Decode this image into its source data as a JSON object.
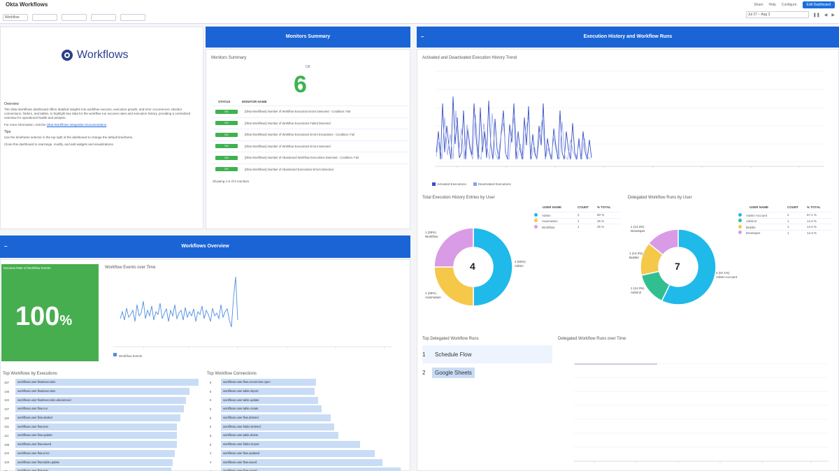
{
  "topbar": {
    "title": "Okta Workflows",
    "filters": [
      {
        "label": "",
        "value": "Workflow"
      },
      {
        "label": "",
        "value": ""
      },
      {
        "label": "",
        "value": ""
      },
      {
        "label": "",
        "value": ""
      },
      {
        "label": "",
        "value": ""
      }
    ],
    "actions": [
      "Share",
      "Help",
      "Configure"
    ],
    "primary_action": "Edit Dashboard",
    "time_range": "Jul 27 – Aug 3"
  },
  "workflows_panel": {
    "logo_text": "Workflows",
    "overview_heading": "Overview",
    "overview_text": "The Okta Workflows dashboard offers detailed insights into workflow success, execution growth, and error occurrences. Monitor connections, folders, and tables, to highlight key data for the workflow run success rates and execution history, providing a centralized overview for operational health and analysis.",
    "more_info_prefix": "For more information, visit the",
    "more_info_link": "Okta Workflows Integration Documentation",
    "tips_heading": "Tips",
    "tips": [
      "Use the timeframe selector in the top right of the dashboard to change the default timeframe.",
      "Clone this dashboard to rearrange, modify, and add widgets and visualizations."
    ]
  },
  "monitors_summary": {
    "band_title": "Monitors Summary",
    "panel_title": "Monitors Summary",
    "ok_label": "OK",
    "ok_count": "6",
    "col_status": "STATUS",
    "col_name": "MONITOR NAME",
    "rows": [
      {
        "status": "OK",
        "name": "[Okta Workflows] Number of Workflow Execution Errors Detected - Condition: Fail"
      },
      {
        "status": "OK",
        "name": "[Okta Workflows] Number of Workflow Executions Failed Detected"
      },
      {
        "status": "OK",
        "name": "[Okta Workflows] Number of Workflow Executions Errors Exceptions - Condition: Fail"
      },
      {
        "status": "OK",
        "name": "[Okta Workflows] Number of Workflow Executions Errors Detected"
      },
      {
        "status": "OK",
        "name": "[Okta Workflows] Number of Abandoned Workflow Executions Detected - Condition: Fail"
      },
      {
        "status": "OK",
        "name": "[Okta Workflows] Number of Abandoned Executions Errors Detected"
      }
    ],
    "footer": "Showing 1-6 of 6 monitors"
  },
  "workflows_overview": {
    "band_title": "Workflows Overview",
    "success_title": "Success Rate of Workflow Events",
    "success_value": "100",
    "success_unit": "%",
    "events_chart_title": "Workflow Events over Time",
    "events_legend": "Workflow Events",
    "top_flows_title": "Top Workflows by Executions",
    "top_flows": [
      {
        "n": "167",
        "name": "workflows.user.flowExecution",
        "w": 1.0
      },
      {
        "n": "146",
        "name": "workflows.user.flowExecution",
        "w": 0.95
      },
      {
        "n": "134",
        "name": "workflows.user.flowExecution.abandoned",
        "w": 0.93
      },
      {
        "n": "127",
        "name": "workflows.user.flow.run",
        "w": 0.92
      },
      {
        "n": "118",
        "name": "workflows.user.flow.started",
        "w": 0.9
      },
      {
        "n": "115",
        "name": "workflows.user.flow.test",
        "w": 0.88
      },
      {
        "n": "111",
        "name": "workflows.user.flow.update",
        "w": 0.88
      },
      {
        "n": "108",
        "name": "workflows.user.flow.saved",
        "w": 0.88
      },
      {
        "n": "104",
        "name": "workflows.user.flow.error",
        "w": 0.87
      },
      {
        "n": "103",
        "name": "workflows.user.flow.table.update",
        "w": 0.86
      },
      {
        "n": "99",
        "name": "workflows.user.flow.test",
        "w": 0.85
      }
    ],
    "top_connections_title": "Top Workflow Connections",
    "top_connections": [
      {
        "n": "8",
        "name": "workflows.user.flow.connection.open",
        "w": 0.52
      },
      {
        "n": "6",
        "name": "workflows.user.table.import",
        "w": 0.51
      },
      {
        "n": "6",
        "name": "workflows.user.table.update",
        "w": 0.53
      },
      {
        "n": "5",
        "name": "workflows.user.table.create",
        "w": 0.55
      },
      {
        "n": "5",
        "name": "workflows.user.flow.deleted",
        "w": 0.6
      },
      {
        "n": "5",
        "name": "workflows.user.folder.deleted",
        "w": 0.62
      },
      {
        "n": "5",
        "name": "workflows.user.table.delete",
        "w": 0.64
      },
      {
        "n": "5",
        "name": "workflows.user.folder.import",
        "w": 0.76
      },
      {
        "n": "4",
        "name": "workflows.user.flow.updated",
        "w": 0.84
      },
      {
        "n": "4",
        "name": "workflows.user.flow.saved",
        "w": 0.88
      },
      {
        "n": "4",
        "name": "workflows.user.flow.export",
        "w": 0.98
      }
    ]
  },
  "execution_history": {
    "band_title": "Execution History and Workflow Runs",
    "line_chart_title": "Activated and Deactivated Execution History Trend",
    "line_legend": [
      "Activated Executions",
      "Deactivated Executions"
    ],
    "donut1": {
      "title": "Total Execution History Entries by User",
      "center": "4",
      "cols": [
        "USER NAME",
        "COUNT",
        "% TOTAL"
      ],
      "rows": [
        {
          "name": "Admin",
          "count": "2",
          "pct": "50 %",
          "color": "#1fb9ea"
        },
        {
          "name": "Automation",
          "count": "1",
          "pct": "25 %",
          "color": "#f5c84a"
        },
        {
          "name": "Workflow",
          "count": "1",
          "pct": "25 %",
          "color": "#d99be6"
        }
      ],
      "labels": [
        {
          "text": "1 (25%)",
          "sub": "Workflow"
        },
        {
          "text": "2 (50%)",
          "sub": "Admin"
        },
        {
          "text": "1 (25%)",
          "sub": "Automation"
        }
      ]
    },
    "donut2": {
      "title": "Delegated Workflow Runs by User",
      "center": "7",
      "cols": [
        "USER NAME",
        "COUNT",
        "% TOTAL"
      ],
      "rows": [
        {
          "name": "Admin Account",
          "count": "4",
          "pct": "57.1 %",
          "color": "#1fb9ea"
        },
        {
          "name": "Admin2",
          "count": "1",
          "pct": "14.3 %",
          "color": "#32bf90"
        },
        {
          "name": "Builder",
          "count": "1",
          "pct": "14.3 %",
          "color": "#f5c84a"
        },
        {
          "name": "Developer",
          "count": "1",
          "pct": "14.3 %",
          "color": "#d99be6"
        }
      ],
      "labels": [
        {
          "text": "1 (14.3%)",
          "sub": "Developer"
        },
        {
          "text": "1 (14.3%)",
          "sub": "Builder"
        },
        {
          "text": "1 (14.3%)",
          "sub": "Admin2"
        },
        {
          "text": "4 (57.1%)",
          "sub": "Admin Account"
        }
      ]
    },
    "top_runs_title": "Top Delegated Workflow Runs",
    "top_runs": [
      {
        "rank": "1",
        "name": "Schedule Flow"
      },
      {
        "rank": "2",
        "name": "Google Sheets"
      }
    ],
    "runs_chart_title": "Delegated Workflow Runs over Time"
  },
  "colors": {
    "band": "#1a64d6",
    "success": "#46ae4e",
    "bar": "#c9dcf6",
    "line": "#5c6fd6"
  }
}
